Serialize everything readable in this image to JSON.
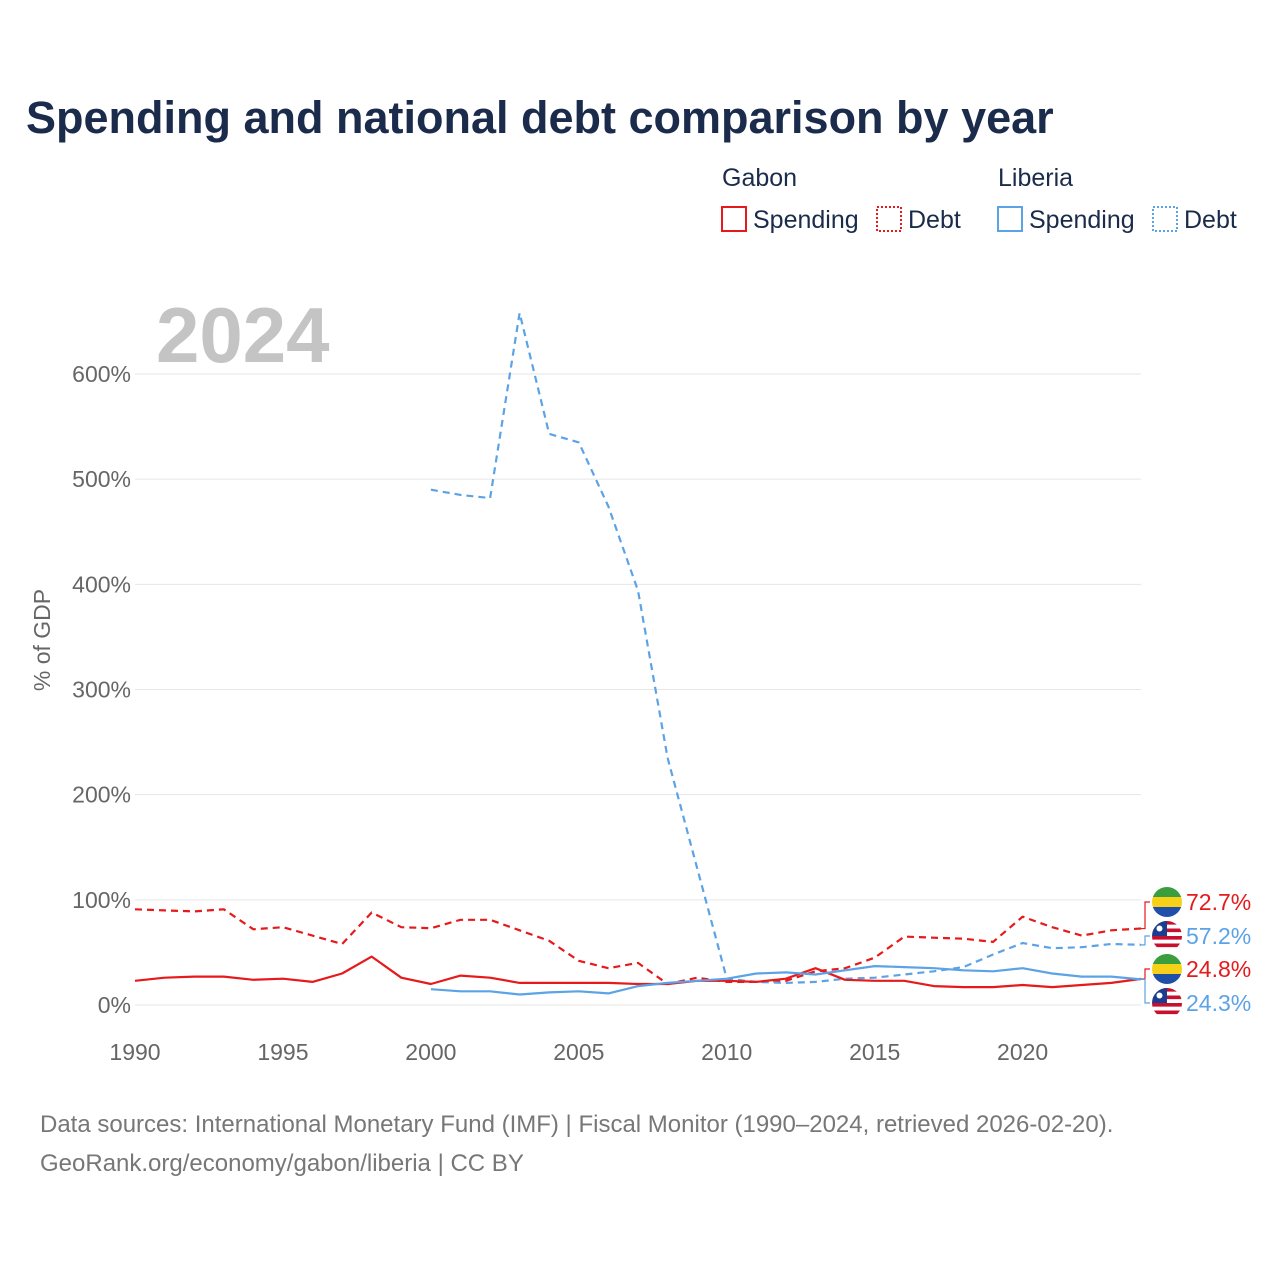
{
  "title": "Spending and national debt comparison by year",
  "year_label": "2024",
  "legend": {
    "groups": [
      {
        "country": "Gabon",
        "color": "#e6191b",
        "items": [
          {
            "label": "Spending",
            "style": "solid"
          },
          {
            "label": "Debt",
            "style": "dotted"
          }
        ]
      },
      {
        "country": "Liberia",
        "color": "#5ba3e6",
        "items": [
          {
            "label": "Spending",
            "style": "solid"
          },
          {
            "label": "Debt",
            "style": "dotted"
          }
        ]
      }
    ]
  },
  "sources": {
    "line1": "Data sources: International Monetary Fund (IMF) | Fiscal Monitor (1990–2024, retrieved 2026-02-20).",
    "line2": "GeoRank.org/economy/gabon/liberia | CC BY"
  },
  "chart_data": {
    "type": "line",
    "title": "Spending and national debt comparison by year",
    "ylabel": "% of GDP",
    "xlabel": "",
    "xlim": [
      1990,
      2024
    ],
    "ylim": [
      0,
      600
    ],
    "x_ticks": [
      1990,
      1995,
      2000,
      2005,
      2010,
      2015,
      2020
    ],
    "y_ticks": [
      0,
      100,
      200,
      300,
      400,
      500,
      600
    ],
    "y_tick_labels": [
      "0%",
      "100%",
      "200%",
      "300%",
      "400%",
      "500%",
      "600%"
    ],
    "grid": true,
    "series": [
      {
        "name": "Gabon Debt",
        "country": "Gabon",
        "metric": "Debt",
        "color": "#e6191b",
        "dash": "dashed",
        "x": [
          1990,
          1991,
          1992,
          1993,
          1994,
          1995,
          1996,
          1997,
          1998,
          1999,
          2000,
          2001,
          2002,
          2003,
          2004,
          2005,
          2006,
          2007,
          2008,
          2009,
          2010,
          2011,
          2012,
          2013,
          2014,
          2015,
          2016,
          2017,
          2018,
          2019,
          2020,
          2021,
          2022,
          2023,
          2024
        ],
        "values": [
          91,
          90,
          89,
          91,
          72,
          74,
          66,
          58,
          88,
          74,
          73,
          81,
          81,
          71,
          61,
          42,
          35,
          40,
          20,
          26,
          22,
          22,
          23,
          32,
          35,
          45,
          65,
          64,
          63,
          60,
          84,
          74,
          66,
          71,
          72.7
        ],
        "end_label": "72.7%"
      },
      {
        "name": "Liberia Debt",
        "country": "Liberia",
        "metric": "Debt",
        "color": "#5ba3e6",
        "dash": "dashed",
        "x": [
          2000,
          2001,
          2002,
          2003,
          2004,
          2005,
          2006,
          2007,
          2008,
          2009,
          2010,
          2011,
          2012,
          2013,
          2014,
          2015,
          2016,
          2017,
          2018,
          2019,
          2020,
          2021,
          2022,
          2023,
          2024
        ],
        "values": [
          490,
          485,
          482,
          658,
          543,
          535,
          474,
          394,
          235,
          130,
          25,
          22,
          21,
          22,
          25,
          26,
          29,
          32,
          36,
          48,
          59,
          54,
          55,
          58,
          57.2
        ],
        "end_label": "57.2%"
      },
      {
        "name": "Gabon Spending",
        "country": "Gabon",
        "metric": "Spending",
        "color": "#e6191b",
        "dash": "solid",
        "x": [
          1990,
          1991,
          1992,
          1993,
          1994,
          1995,
          1996,
          1997,
          1998,
          1999,
          2000,
          2001,
          2002,
          2003,
          2004,
          2005,
          2006,
          2007,
          2008,
          2009,
          2010,
          2011,
          2012,
          2013,
          2014,
          2015,
          2016,
          2017,
          2018,
          2019,
          2020,
          2021,
          2022,
          2023,
          2024
        ],
        "values": [
          23,
          26,
          27,
          27,
          24,
          25,
          22,
          30,
          46,
          26,
          20,
          28,
          26,
          21,
          21,
          21,
          21,
          20,
          20,
          23,
          23,
          22,
          25,
          35,
          24,
          23,
          23,
          18,
          17,
          17,
          19,
          17,
          19,
          21,
          24.8
        ],
        "end_label": "24.8%"
      },
      {
        "name": "Liberia Spending",
        "country": "Liberia",
        "metric": "Spending",
        "color": "#5ba3e6",
        "dash": "solid",
        "x": [
          2000,
          2001,
          2002,
          2003,
          2004,
          2005,
          2006,
          2007,
          2008,
          2009,
          2010,
          2011,
          2012,
          2013,
          2014,
          2015,
          2016,
          2017,
          2018,
          2019,
          2020,
          2021,
          2022,
          2023,
          2024
        ],
        "values": [
          15,
          13,
          13,
          10,
          12,
          13,
          11,
          18,
          21,
          23,
          25,
          30,
          31,
          29,
          33,
          37,
          36,
          35,
          33,
          32,
          35,
          30,
          27,
          27,
          24.3
        ],
        "end_label": "24.3%"
      }
    ]
  }
}
